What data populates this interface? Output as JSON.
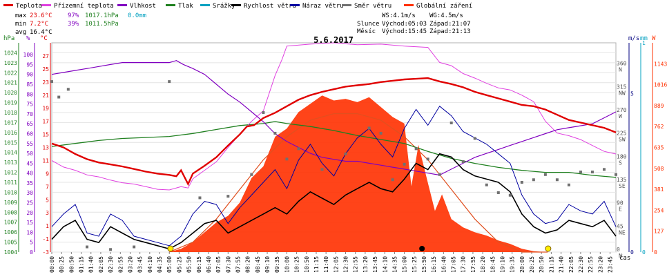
{
  "chart_data": {
    "type": "line",
    "title": "5.6.2017",
    "legend": [
      {
        "label": "Teplota",
        "color": "#e00000"
      },
      {
        "label": "Přízemní teplota",
        "color": "#e040e0"
      },
      {
        "label": "Vlhkost",
        "color": "#8000c0"
      },
      {
        "label": "Tlak",
        "color": "#208020"
      },
      {
        "label": "Srážky",
        "color": "#00a0c0"
      },
      {
        "label": "Rychlost větru",
        "color": "#000000"
      },
      {
        "label": "Náraz větru",
        "color": "#0000a0"
      },
      {
        "label": "Směr větru",
        "color": "#707070"
      },
      {
        "label": "Globální záření",
        "color": "#ff3000"
      }
    ],
    "stats": {
      "max": {
        "label": "max",
        "temp": "23.6°C",
        "hum": "97%",
        "press": "1017.1hPa",
        "rain": "0.0mm"
      },
      "min": {
        "label": "min",
        "temp": "7.2°C",
        "hum": "39%",
        "press": "1011.5hPa"
      },
      "avg": {
        "label": "avg",
        "temp": "16.4°C"
      }
    },
    "info": {
      "ws": "WS:4.1m/s",
      "wg": "WG:4.5m/s",
      "sun_label": "Slunce",
      "sun_rise": "Východ:05:03",
      "sun_set": "Západ:21:07",
      "moon_label": "Měsíc",
      "moon_rise": "Východ:15:45",
      "moon_set": "Západ:21:13"
    },
    "axis_units": {
      "hpa": "hPa",
      "pct": "%",
      "degc": "°C",
      "ms": "m/s",
      "mm": "mm",
      "w": "W",
      "time": "čas"
    },
    "hpa_ticks": [
      "1004",
      "1005",
      "1006",
      "1007",
      "1008",
      "1009",
      "1010",
      "1011",
      "1012",
      "1013",
      "1014",
      "1015",
      "1016",
      "1017",
      "1018",
      "1019",
      "1020",
      "1021",
      "1022",
      "1023",
      "1024"
    ],
    "pct_ticks": [
      "0",
      "5",
      "10",
      "15",
      "20",
      "25",
      "30",
      "35",
      "40",
      "45",
      "50",
      "55",
      "60",
      "65",
      "70",
      "75",
      "80",
      "85",
      "90",
      "95",
      "100"
    ],
    "temp_ticks": [
      "-3",
      "-1",
      "1",
      "3",
      "5",
      "7",
      "9",
      "11",
      "13",
      "15",
      "17",
      "19",
      "21",
      "23",
      "25",
      "27"
    ],
    "dir_ticks": [
      {
        "deg": 0,
        "num": "0",
        "dir": "N"
      },
      {
        "deg": 45,
        "num": "45",
        "dir": "NE"
      },
      {
        "deg": 90,
        "num": "90",
        "dir": "E"
      },
      {
        "deg": 135,
        "num": "135",
        "dir": "SE"
      },
      {
        "deg": 180,
        "num": "180",
        "dir": "S"
      },
      {
        "deg": 225,
        "num": "225",
        "dir": "SW"
      },
      {
        "deg": 270,
        "num": "270",
        "dir": "W"
      },
      {
        "deg": 315,
        "num": "315",
        "dir": "NW"
      },
      {
        "deg": 360,
        "num": "360",
        "dir": "N"
      }
    ],
    "wind_ticks": [
      "0",
      "5"
    ],
    "rain_ticks": [
      "0",
      "1"
    ],
    "rad_ticks": [
      "0",
      "127",
      "254",
      "381",
      "508",
      "635",
      "762",
      "889",
      "1016",
      "1143"
    ],
    "time_labels": [
      "00:00",
      "00:25",
      "00:50",
      "01:15",
      "01:40",
      "02:05",
      "02:30",
      "02:55",
      "03:20",
      "03:45",
      "04:10",
      "04:35",
      "05:00",
      "05:25",
      "05:50",
      "06:15",
      "06:40",
      "07:05",
      "07:30",
      "07:55",
      "08:20",
      "08:45",
      "09:10",
      "09:35",
      "10:00",
      "10:25",
      "10:50",
      "11:15",
      "11:40",
      "12:05",
      "12:30",
      "12:55",
      "13:20",
      "13:45",
      "14:10",
      "14:35",
      "15:00",
      "15:25",
      "15:50",
      "16:15",
      "16:40",
      "17:05",
      "17:30",
      "17:55",
      "18:20",
      "18:45",
      "19:10",
      "19:35",
      "20:00",
      "20:25",
      "20:50",
      "21:15",
      "21:40",
      "22:05",
      "22:30",
      "22:55",
      "23:20",
      "23:45"
    ],
    "x_unit": "hours",
    "xlim": [
      0,
      24
    ],
    "temp_range": [
      -3,
      29
    ],
    "hum_range": [
      0,
      106
    ],
    "press_range": [
      1004,
      1025
    ],
    "dir_range": [
      0,
      405
    ],
    "wind_range": [
      0,
      6.6
    ],
    "rad_range": [
      0,
      1270
    ],
    "temperature": [
      [
        0,
        13.6
      ],
      [
        0.5,
        13.0
      ],
      [
        1,
        12.0
      ],
      [
        1.5,
        11.2
      ],
      [
        2,
        10.7
      ],
      [
        2.5,
        10.4
      ],
      [
        3,
        10.1
      ],
      [
        3.5,
        9.7
      ],
      [
        4,
        9.3
      ],
      [
        4.5,
        9.0
      ],
      [
        5,
        8.8
      ],
      [
        5.3,
        8.6
      ],
      [
        5.5,
        9.5
      ],
      [
        5.8,
        7.4
      ],
      [
        6,
        9.0
      ],
      [
        6.5,
        10.2
      ],
      [
        7,
        11.5
      ],
      [
        7.5,
        13.3
      ],
      [
        8,
        15.0
      ],
      [
        8.3,
        16.2
      ],
      [
        8.6,
        16.4
      ],
      [
        9,
        17.5
      ],
      [
        9.5,
        18.3
      ],
      [
        10,
        19.3
      ],
      [
        10.5,
        20.3
      ],
      [
        11,
        21.0
      ],
      [
        11.5,
        21.5
      ],
      [
        12,
        21.9
      ],
      [
        12.5,
        22.3
      ],
      [
        13,
        22.5
      ],
      [
        13.5,
        22.7
      ],
      [
        14,
        23.0
      ],
      [
        14.5,
        23.2
      ],
      [
        15,
        23.4
      ],
      [
        15.5,
        23.5
      ],
      [
        16,
        23.6
      ],
      [
        16.5,
        23.1
      ],
      [
        17,
        22.7
      ],
      [
        17.5,
        22.2
      ],
      [
        18,
        21.5
      ],
      [
        18.5,
        21.0
      ],
      [
        19,
        20.5
      ],
      [
        19.5,
        20.0
      ],
      [
        20,
        19.5
      ],
      [
        20.5,
        19.3
      ],
      [
        21,
        18.8
      ],
      [
        21.5,
        18.0
      ],
      [
        22,
        17.2
      ],
      [
        22.5,
        16.8
      ],
      [
        23,
        16.4
      ],
      [
        23.5,
        16.0
      ],
      [
        24,
        15.3
      ]
    ],
    "ground_temp": [
      [
        0,
        11.0
      ],
      [
        0.5,
        10.0
      ],
      [
        1,
        9.5
      ],
      [
        1.5,
        8.8
      ],
      [
        2,
        8.5
      ],
      [
        2.5,
        8.0
      ],
      [
        3,
        7.6
      ],
      [
        3.5,
        7.4
      ],
      [
        4,
        7.0
      ],
      [
        4.5,
        6.6
      ],
      [
        5,
        6.5
      ],
      [
        5.5,
        7.0
      ],
      [
        5.8,
        6.8
      ],
      [
        6,
        8.2
      ],
      [
        6.5,
        9.5
      ],
      [
        7,
        10.8
      ],
      [
        7.5,
        13.0
      ],
      [
        8,
        15.0
      ],
      [
        8.5,
        17.0
      ],
      [
        9,
        18.6
      ],
      [
        9.5,
        24.0
      ],
      [
        9.8,
        26.5
      ],
      [
        10,
        28.5
      ],
      [
        11,
        28.8
      ],
      [
        12,
        29.0
      ],
      [
        13,
        28.7
      ],
      [
        14,
        28.8
      ],
      [
        15,
        28.5
      ],
      [
        16,
        28.3
      ],
      [
        16.5,
        26.0
      ],
      [
        17,
        25.5
      ],
      [
        17.5,
        24.3
      ],
      [
        18,
        23.6
      ],
      [
        18.5,
        22.8
      ],
      [
        19,
        22.1
      ],
      [
        19.5,
        21.8
      ],
      [
        20,
        21.0
      ],
      [
        20.5,
        20.0
      ],
      [
        21,
        17.0
      ],
      [
        21.5,
        15.2
      ],
      [
        22,
        14.8
      ],
      [
        22.5,
        14.2
      ],
      [
        23,
        13.3
      ],
      [
        23.5,
        12.4
      ],
      [
        24,
        12.0
      ]
    ],
    "humidity": [
      [
        0,
        90
      ],
      [
        0.5,
        91
      ],
      [
        1,
        92
      ],
      [
        1.5,
        93
      ],
      [
        2,
        94
      ],
      [
        2.5,
        95
      ],
      [
        3,
        96
      ],
      [
        3.5,
        96
      ],
      [
        4,
        96
      ],
      [
        4.5,
        96
      ],
      [
        5,
        96
      ],
      [
        5.3,
        97
      ],
      [
        5.6,
        95
      ],
      [
        6,
        93
      ],
      [
        6.5,
        90
      ],
      [
        7,
        85
      ],
      [
        7.5,
        80
      ],
      [
        8,
        76
      ],
      [
        8.5,
        71
      ],
      [
        9,
        66
      ],
      [
        9.5,
        60
      ],
      [
        10,
        56
      ],
      [
        10.5,
        53
      ],
      [
        11,
        50
      ],
      [
        11.5,
        48
      ],
      [
        12,
        47
      ],
      [
        12.5,
        46
      ],
      [
        13,
        46
      ],
      [
        13.5,
        45
      ],
      [
        14,
        44
      ],
      [
        14.5,
        43
      ],
      [
        15,
        42
      ],
      [
        15.5,
        41
      ],
      [
        16,
        40
      ],
      [
        16.5,
        39
      ],
      [
        17,
        42
      ],
      [
        17.5,
        45
      ],
      [
        18,
        48
      ],
      [
        18.5,
        50
      ],
      [
        19,
        52
      ],
      [
        19.5,
        54
      ],
      [
        20,
        56
      ],
      [
        20.5,
        58
      ],
      [
        21,
        60
      ],
      [
        21.5,
        62
      ],
      [
        22,
        63
      ],
      [
        22.5,
        64
      ],
      [
        23,
        65
      ],
      [
        23.5,
        68
      ],
      [
        24,
        71
      ]
    ],
    "pressure": [
      [
        0,
        1014.6
      ],
      [
        1,
        1014.9
      ],
      [
        2,
        1015.2
      ],
      [
        3,
        1015.4
      ],
      [
        4,
        1015.5
      ],
      [
        5,
        1015.6
      ],
      [
        6,
        1015.9
      ],
      [
        7,
        1016.3
      ],
      [
        8,
        1016.7
      ],
      [
        9,
        1016.9
      ],
      [
        9.5,
        1017.1
      ],
      [
        10,
        1016.9
      ],
      [
        11,
        1016.6
      ],
      [
        12,
        1016.2
      ],
      [
        13,
        1015.7
      ],
      [
        14,
        1015.3
      ],
      [
        15,
        1014.9
      ],
      [
        16,
        1014.1
      ],
      [
        17,
        1013.4
      ],
      [
        18,
        1012.9
      ],
      [
        19,
        1012.5
      ],
      [
        20,
        1012.2
      ],
      [
        21,
        1012.0
      ],
      [
        22,
        1012.0
      ],
      [
        23,
        1011.7
      ],
      [
        24,
        1011.5
      ]
    ],
    "wind_speed": [
      [
        0,
        0.4
      ],
      [
        0.5,
        0.8
      ],
      [
        1,
        1.0
      ],
      [
        1.5,
        0.4
      ],
      [
        2,
        0.3
      ],
      [
        2.5,
        0.8
      ],
      [
        3,
        0.6
      ],
      [
        3.5,
        0.4
      ],
      [
        4,
        0.3
      ],
      [
        4.5,
        0.2
      ],
      [
        5,
        0.1
      ],
      [
        5.5,
        0.3
      ],
      [
        6,
        0.6
      ],
      [
        6.5,
        0.9
      ],
      [
        7,
        1.0
      ],
      [
        7.5,
        0.6
      ],
      [
        8,
        0.8
      ],
      [
        8.5,
        1.0
      ],
      [
        9,
        1.2
      ],
      [
        9.5,
        1.4
      ],
      [
        10,
        1.2
      ],
      [
        10.5,
        1.6
      ],
      [
        11,
        1.9
      ],
      [
        11.5,
        1.7
      ],
      [
        12,
        1.5
      ],
      [
        12.5,
        1.8
      ],
      [
        13,
        2.0
      ],
      [
        13.5,
        2.2
      ],
      [
        14,
        2.0
      ],
      [
        14.5,
        1.9
      ],
      [
        15,
        2.3
      ],
      [
        15.5,
        2.8
      ],
      [
        16,
        2.6
      ],
      [
        16.5,
        3.1
      ],
      [
        17,
        3.0
      ],
      [
        17.5,
        2.6
      ],
      [
        18,
        2.4
      ],
      [
        18.5,
        2.3
      ],
      [
        19,
        2.2
      ],
      [
        19.5,
        1.9
      ],
      [
        20,
        1.2
      ],
      [
        20.5,
        0.8
      ],
      [
        21,
        0.6
      ],
      [
        21.5,
        0.7
      ],
      [
        22,
        1.0
      ],
      [
        22.5,
        0.9
      ],
      [
        23,
        0.8
      ],
      [
        23.5,
        1.0
      ],
      [
        24,
        0.5
      ]
    ],
    "wind_gust": [
      [
        0,
        0.8
      ],
      [
        0.5,
        1.2
      ],
      [
        1,
        1.5
      ],
      [
        1.5,
        0.6
      ],
      [
        2,
        0.5
      ],
      [
        2.5,
        1.2
      ],
      [
        3,
        1.0
      ],
      [
        3.5,
        0.5
      ],
      [
        4,
        0.4
      ],
      [
        4.5,
        0.3
      ],
      [
        5,
        0.2
      ],
      [
        5.5,
        0.5
      ],
      [
        6,
        1.2
      ],
      [
        6.5,
        1.6
      ],
      [
        7,
        1.5
      ],
      [
        7.5,
        0.9
      ],
      [
        8,
        1.4
      ],
      [
        8.5,
        1.8
      ],
      [
        9,
        2.2
      ],
      [
        9.5,
        2.6
      ],
      [
        10,
        2.0
      ],
      [
        10.5,
        2.9
      ],
      [
        11,
        3.4
      ],
      [
        11.5,
        2.8
      ],
      [
        12,
        2.4
      ],
      [
        12.5,
        3.1
      ],
      [
        13,
        3.6
      ],
      [
        13.5,
        3.9
      ],
      [
        14,
        3.4
      ],
      [
        14.5,
        3.0
      ],
      [
        15,
        3.9
      ],
      [
        15.5,
        4.5
      ],
      [
        16,
        4.0
      ],
      [
        16.5,
        4.6
      ],
      [
        17,
        4.3
      ],
      [
        17.5,
        3.8
      ],
      [
        18,
        3.6
      ],
      [
        18.5,
        3.4
      ],
      [
        19,
        3.1
      ],
      [
        19.5,
        2.8
      ],
      [
        20,
        1.8
      ],
      [
        20.5,
        1.2
      ],
      [
        21,
        0.9
      ],
      [
        21.5,
        1.0
      ],
      [
        22,
        1.5
      ],
      [
        22.5,
        1.3
      ],
      [
        23,
        1.2
      ],
      [
        23.5,
        1.6
      ],
      [
        24,
        0.8
      ]
    ],
    "wind_dir": [
      [
        0,
        330
      ],
      [
        0.3,
        300
      ],
      [
        0.7,
        315
      ],
      [
        1.5,
        10
      ],
      [
        2.5,
        5
      ],
      [
        3.5,
        10
      ],
      [
        5,
        330
      ],
      [
        6.3,
        105
      ],
      [
        7.5,
        108
      ],
      [
        8.5,
        150
      ],
      [
        9,
        270
      ],
      [
        9.5,
        230
      ],
      [
        10,
        180
      ],
      [
        10.5,
        200
      ],
      [
        11.5,
        160
      ],
      [
        12.5,
        190
      ],
      [
        13.5,
        240
      ],
      [
        14,
        230
      ],
      [
        14.5,
        140
      ],
      [
        15,
        170
      ],
      [
        15.5,
        200
      ],
      [
        16,
        180
      ],
      [
        16.5,
        150
      ],
      [
        17,
        250
      ],
      [
        17.5,
        175
      ],
      [
        18,
        220
      ],
      [
        18.5,
        130
      ],
      [
        19,
        115
      ],
      [
        19.5,
        110
      ],
      [
        20,
        135
      ],
      [
        20.5,
        140
      ],
      [
        21,
        150
      ],
      [
        21.5,
        140
      ],
      [
        22,
        130
      ],
      [
        22.5,
        155
      ],
      [
        23,
        155
      ],
      [
        23.5,
        160
      ],
      [
        24,
        150
      ]
    ],
    "radiation": [
      [
        0,
        0
      ],
      [
        5.0,
        0
      ],
      [
        5.5,
        20
      ],
      [
        6,
        60
      ],
      [
        6.5,
        120
      ],
      [
        7,
        180
      ],
      [
        7.5,
        220
      ],
      [
        8,
        300
      ],
      [
        8.5,
        450
      ],
      [
        9,
        520
      ],
      [
        9.5,
        700
      ],
      [
        10,
        750
      ],
      [
        10.5,
        850
      ],
      [
        11,
        900
      ],
      [
        11.5,
        950
      ],
      [
        12,
        920
      ],
      [
        12.5,
        930
      ],
      [
        13,
        910
      ],
      [
        13.5,
        940
      ],
      [
        14,
        880
      ],
      [
        14.5,
        820
      ],
      [
        15,
        780
      ],
      [
        15.3,
        400
      ],
      [
        15.6,
        650
      ],
      [
        16,
        420
      ],
      [
        16.3,
        250
      ],
      [
        16.6,
        350
      ],
      [
        17,
        200
      ],
      [
        17.5,
        150
      ],
      [
        18,
        120
      ],
      [
        18.5,
        100
      ],
      [
        19,
        70
      ],
      [
        19.5,
        50
      ],
      [
        20,
        20
      ],
      [
        20.5,
        5
      ],
      [
        21,
        0
      ],
      [
        24,
        0
      ]
    ],
    "theoretical_radiation": [
      [
        5.0,
        0
      ],
      [
        6,
        60
      ],
      [
        7,
        200
      ],
      [
        8,
        380
      ],
      [
        9,
        560
      ],
      [
        10,
        700
      ],
      [
        11,
        800
      ],
      [
        12,
        840
      ],
      [
        13,
        840
      ],
      [
        14,
        800
      ],
      [
        15,
        700
      ],
      [
        16,
        560
      ],
      [
        17,
        380
      ],
      [
        18,
        200
      ],
      [
        19,
        60
      ],
      [
        20,
        0
      ],
      [
        21.1,
        0
      ]
    ]
  }
}
